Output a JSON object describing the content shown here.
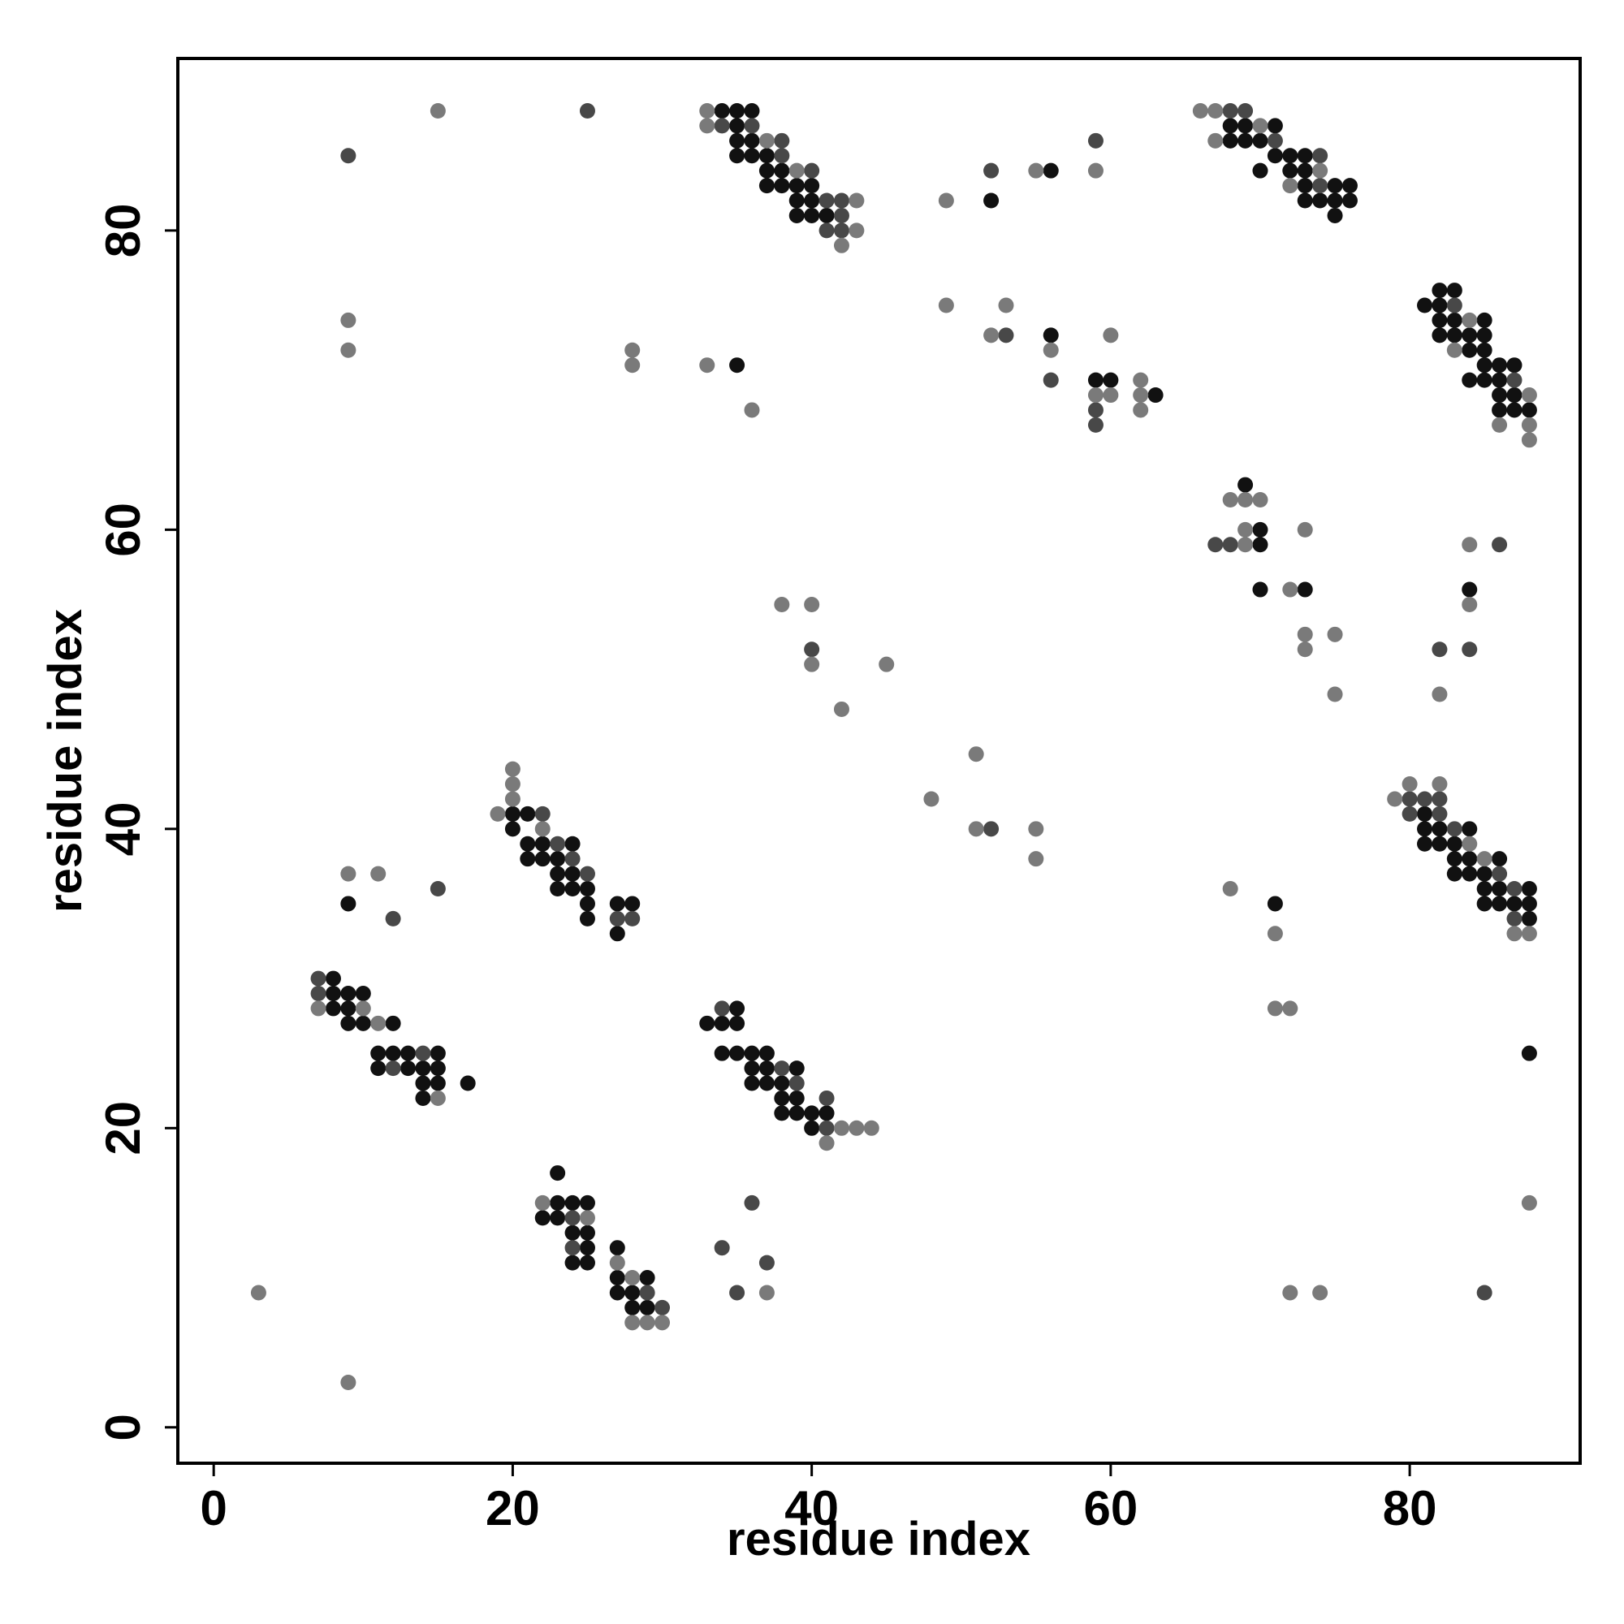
{
  "chart_data": {
    "type": "scatter",
    "xlabel": "residue index",
    "ylabel": "residue index",
    "xlim": [
      -2.4,
      91.4
    ],
    "ylim": [
      -2.4,
      91.5
    ],
    "xticks": [
      0,
      20,
      40,
      60,
      80
    ],
    "yticks": [
      0,
      20,
      40,
      60,
      80
    ],
    "series": [
      {
        "color": "#111111",
        "x": [
          34,
          35,
          36,
          35,
          68,
          69,
          71,
          35,
          36,
          68,
          69,
          70,
          35,
          36,
          37,
          71,
          72,
          73,
          37,
          38,
          56,
          70,
          72,
          73,
          37,
          38,
          39,
          40,
          73,
          75,
          76,
          39,
          40,
          52,
          73,
          74,
          75,
          76,
          39,
          40,
          41,
          75,
          82,
          83,
          81,
          82,
          82,
          83,
          85,
          56,
          82,
          83,
          84,
          85,
          84,
          85,
          35,
          85,
          86,
          87,
          59,
          60,
          84,
          85,
          86,
          63,
          86,
          87,
          86,
          87,
          88,
          69,
          70,
          70,
          70,
          73,
          84,
          20,
          21,
          81,
          20,
          81,
          82,
          84,
          21,
          22,
          24,
          81,
          82,
          83,
          21,
          22,
          23,
          83,
          84,
          86,
          23,
          24,
          83,
          84,
          85,
          23,
          24,
          25,
          85,
          86,
          88,
          9,
          25,
          27,
          28,
          71,
          85,
          86,
          87,
          88,
          25,
          88,
          27,
          8,
          8,
          9,
          10,
          8,
          9,
          35,
          9,
          10,
          12,
          33,
          34,
          35,
          11,
          12,
          13,
          15,
          34,
          35,
          36,
          37,
          88,
          11,
          13,
          14,
          15,
          36,
          37,
          39,
          14,
          15,
          17,
          36,
          37,
          38,
          14,
          38,
          39,
          38,
          39,
          40,
          41,
          40,
          23,
          23,
          24,
          25,
          22,
          23,
          24,
          25,
          25,
          27,
          24,
          25,
          27,
          29,
          27,
          28,
          28,
          29
        ],
        "values": [
          88,
          88,
          88,
          87,
          87,
          87,
          87,
          86,
          86,
          86,
          86,
          86,
          85,
          85,
          85,
          85,
          85,
          85,
          84,
          84,
          84,
          84,
          84,
          84,
          83,
          83,
          83,
          83,
          83,
          83,
          83,
          82,
          82,
          82,
          82,
          82,
          82,
          82,
          81,
          81,
          81,
          81,
          76,
          76,
          75,
          75,
          74,
          74,
          74,
          73,
          73,
          73,
          73,
          73,
          72,
          72,
          71,
          71,
          71,
          71,
          70,
          70,
          70,
          70,
          70,
          69,
          69,
          69,
          68,
          68,
          68,
          63,
          60,
          59,
          56,
          56,
          56,
          41,
          41,
          41,
          40,
          40,
          40,
          40,
          39,
          39,
          39,
          39,
          39,
          39,
          38,
          38,
          38,
          38,
          38,
          38,
          37,
          37,
          37,
          37,
          37,
          36,
          36,
          36,
          36,
          36,
          36,
          35,
          35,
          35,
          35,
          35,
          35,
          35,
          35,
          35,
          34,
          34,
          33,
          30,
          29,
          29,
          29,
          28,
          28,
          28,
          27,
          27,
          27,
          27,
          27,
          27,
          25,
          25,
          25,
          25,
          25,
          25,
          25,
          25,
          25,
          24,
          24,
          24,
          24,
          24,
          24,
          24,
          23,
          23,
          23,
          23,
          23,
          23,
          22,
          22,
          22,
          21,
          21,
          21,
          21,
          20,
          17,
          15,
          15,
          15,
          14,
          14,
          13,
          13,
          12,
          12,
          11,
          11,
          10,
          10,
          9,
          9,
          8,
          8
        ]
      },
      {
        "color": "#484848",
        "x": [
          25,
          68,
          69,
          34,
          36,
          38,
          59,
          71,
          9,
          38,
          74,
          40,
          52,
          74,
          41,
          42,
          42,
          41,
          42,
          83,
          53,
          56,
          87,
          59,
          59,
          67,
          68,
          86,
          40,
          82,
          84,
          80,
          81,
          82,
          22,
          80,
          82,
          52,
          83,
          23,
          24,
          25,
          86,
          15,
          87,
          12,
          27,
          28,
          87,
          7,
          7,
          34,
          14,
          12,
          38,
          39,
          41,
          41,
          36,
          24,
          24,
          34,
          37,
          29,
          35,
          85,
          30
        ],
        "values": [
          88,
          88,
          88,
          87,
          87,
          86,
          86,
          86,
          85,
          85,
          85,
          84,
          84,
          83,
          82,
          82,
          81,
          80,
          80,
          75,
          73,
          70,
          70,
          68,
          67,
          59,
          59,
          59,
          52,
          52,
          52,
          42,
          42,
          42,
          41,
          41,
          41,
          40,
          40,
          39,
          38,
          37,
          37,
          36,
          36,
          34,
          34,
          34,
          34,
          30,
          29,
          28,
          25,
          24,
          24,
          23,
          22,
          20,
          15,
          14,
          12,
          12,
          11,
          9,
          9,
          9,
          8
        ]
      },
      {
        "color": "#7a7a7a",
        "x": [
          15,
          33,
          66,
          67,
          33,
          70,
          37,
          67,
          39,
          55,
          59,
          74,
          72,
          43,
          49,
          43,
          42,
          49,
          53,
          9,
          84,
          52,
          60,
          9,
          28,
          56,
          83,
          28,
          33,
          62,
          59,
          60,
          62,
          88,
          36,
          62,
          86,
          88,
          88,
          68,
          69,
          70,
          69,
          73,
          69,
          84,
          72,
          38,
          40,
          84,
          73,
          75,
          73,
          40,
          45,
          75,
          82,
          42,
          51,
          20,
          20,
          80,
          82,
          20,
          48,
          79,
          19,
          22,
          51,
          55,
          84,
          55,
          85,
          9,
          11,
          68,
          71,
          87,
          88,
          7,
          10,
          71,
          72,
          11,
          15,
          42,
          43,
          44,
          41,
          22,
          88,
          25,
          27,
          28,
          3,
          37,
          72,
          74,
          28,
          29,
          30,
          9
        ],
        "values": [
          88,
          88,
          88,
          88,
          87,
          87,
          86,
          86,
          84,
          84,
          84,
          84,
          83,
          82,
          82,
          80,
          79,
          75,
          75,
          74,
          74,
          73,
          73,
          72,
          72,
          72,
          72,
          71,
          71,
          70,
          69,
          69,
          69,
          69,
          68,
          68,
          67,
          67,
          66,
          62,
          62,
          62,
          60,
          60,
          59,
          59,
          56,
          55,
          55,
          55,
          53,
          53,
          52,
          51,
          51,
          49,
          49,
          48,
          45,
          44,
          43,
          43,
          43,
          42,
          42,
          42,
          41,
          40,
          40,
          40,
          39,
          38,
          38,
          37,
          37,
          36,
          33,
          33,
          33,
          28,
          28,
          28,
          28,
          27,
          22,
          20,
          20,
          20,
          19,
          15,
          15,
          14,
          11,
          10,
          9,
          9,
          9,
          9,
          7,
          7,
          7,
          3
        ]
      }
    ]
  }
}
